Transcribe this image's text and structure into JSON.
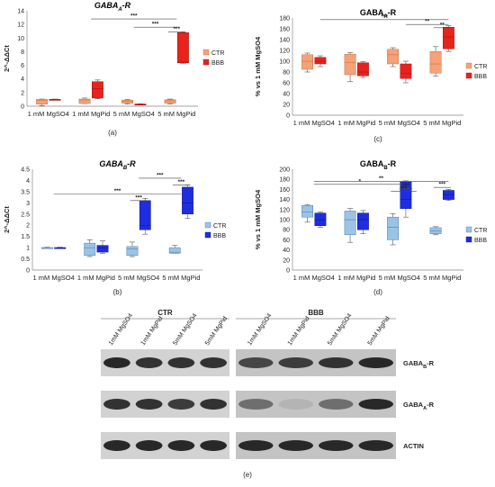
{
  "chart_data": [
    {
      "id": "a",
      "type": "box",
      "panel_label": "(a)",
      "title": "GABA",
      "title_sub": "A",
      "title_suffix": "-R",
      "ylabel": "2^-ΔΔCt",
      "ylim": [
        0,
        14
      ],
      "yticks": [
        0,
        2,
        4,
        6,
        8,
        10,
        12,
        14
      ],
      "categories": [
        "1 mM MgSO4",
        "1 mM MgPid",
        "5 mM MgSO4",
        "5 mM MgPid"
      ],
      "series": [
        {
          "name": "CTR",
          "color": "#f4a27a",
          "stroke": "#c7703f",
          "boxes": [
            {
              "min": 0.1,
              "q1": 0.3,
              "median": 0.9,
              "q3": 1.0,
              "max": 1.05
            },
            {
              "min": 0.4,
              "q1": 0.4,
              "median": 0.95,
              "q3": 1.05,
              "max": 1.2
            },
            {
              "min": 0.3,
              "q1": 0.45,
              "median": 0.75,
              "q3": 0.9,
              "max": 1.0
            },
            {
              "min": 0.3,
              "q1": 0.45,
              "median": 0.8,
              "q3": 0.95,
              "max": 1.05
            }
          ]
        },
        {
          "name": "BBB",
          "color": "#e8231e",
          "stroke": "#9c1410",
          "boxes": [
            {
              "min": 0.95,
              "q1": 1.0,
              "median": 1.0,
              "q3": 1.02,
              "max": 1.05
            },
            {
              "min": 1.1,
              "q1": 1.2,
              "median": 2.6,
              "q3": 3.6,
              "max": 3.85
            },
            {
              "min": 0.2,
              "q1": 0.25,
              "median": 0.3,
              "q3": 0.32,
              "max": 0.35
            },
            {
              "min": 6.3,
              "q1": 6.4,
              "median": 6.5,
              "q3": 10.8,
              "max": 10.9
            }
          ]
        }
      ],
      "significance": [
        {
          "from": 1,
          "to": 3,
          "level": 12.8,
          "label": "***"
        },
        {
          "from": 2,
          "to": 3,
          "level": 11.6,
          "label": "***"
        },
        {
          "from": 2.8,
          "to": 3.2,
          "level": 10.9,
          "label": "***"
        }
      ],
      "legend_position": "right"
    },
    {
      "id": "c",
      "type": "box",
      "panel_label": "(c)",
      "title": "GABA",
      "title_sub": "A",
      "title_suffix": "-R",
      "ylabel": "% vs 1 mM MgSO4",
      "ylim": [
        0,
        180
      ],
      "yticks": [
        0,
        20,
        40,
        60,
        80,
        100,
        120,
        140,
        160,
        180
      ],
      "categories": [
        "1 mM MgSO4",
        "1 mM MgPid",
        "5 mM MgSO4",
        "5 mM MgPid"
      ],
      "series": [
        {
          "name": "CTR",
          "color": "#f4a27a",
          "stroke": "#c7703f",
          "boxes": [
            {
              "min": 80,
              "q1": 85,
              "median": 100,
              "q3": 112,
              "max": 115
            },
            {
              "min": 62,
              "q1": 75,
              "median": 98,
              "q3": 113,
              "max": 116
            },
            {
              "min": 90,
              "q1": 95,
              "median": 112,
              "q3": 122,
              "max": 125
            },
            {
              "min": 72,
              "q1": 78,
              "median": 95,
              "q3": 118,
              "max": 127
            }
          ]
        },
        {
          "name": "BBB",
          "color": "#e8231e",
          "stroke": "#9c1410",
          "boxes": [
            {
              "min": 90,
              "q1": 95,
              "median": 100,
              "q3": 107,
              "max": 110
            },
            {
              "min": 70,
              "q1": 73,
              "median": 80,
              "q3": 97,
              "max": 99
            },
            {
              "min": 60,
              "q1": 68,
              "median": 78,
              "q3": 95,
              "max": 100
            },
            {
              "min": 118,
              "q1": 123,
              "median": 145,
              "q3": 163,
              "max": 166
            }
          ]
        }
      ],
      "significance": [
        {
          "from": 0.15,
          "to": 3.15,
          "level": 177,
          "label": "***"
        },
        {
          "from": 2.15,
          "to": 3.15,
          "level": 168,
          "label": "**"
        },
        {
          "from": 2.8,
          "to": 3.2,
          "level": 162,
          "label": "**"
        }
      ],
      "legend_position": "right"
    },
    {
      "id": "b",
      "type": "box",
      "panel_label": "(b)",
      "title": "GABA",
      "title_sub": "B",
      "title_suffix": "-R",
      "ylabel": "2^-ΔΔCt",
      "ylim": [
        0,
        4.5
      ],
      "yticks": [
        0,
        0.5,
        1,
        1.5,
        2,
        2.5,
        3,
        3.5,
        4,
        4.5
      ],
      "categories": [
        "1 mM MgSO4",
        "1 mM MgPid",
        "5 mM MgSO4",
        "5 mM MgPid"
      ],
      "series": [
        {
          "name": "CTR",
          "color": "#9cc3e6",
          "stroke": "#4f7ea8",
          "boxes": [
            {
              "min": 0.98,
              "q1": 1.0,
              "median": 1.0,
              "q3": 1.0,
              "max": 1.02
            },
            {
              "min": 0.6,
              "q1": 0.65,
              "median": 1.0,
              "q3": 1.2,
              "max": 1.35
            },
            {
              "min": 0.6,
              "q1": 0.65,
              "median": 0.95,
              "q3": 1.05,
              "max": 1.25
            },
            {
              "min": 0.75,
              "q1": 0.75,
              "median": 0.8,
              "q3": 1.0,
              "max": 1.1
            }
          ]
        },
        {
          "name": "BBB",
          "color": "#1f2de0",
          "stroke": "#0d1680",
          "boxes": [
            {
              "min": 0.98,
              "q1": 1.0,
              "median": 1.0,
              "q3": 1.0,
              "max": 1.02
            },
            {
              "min": 0.75,
              "q1": 0.8,
              "median": 1.0,
              "q3": 1.1,
              "max": 1.3
            },
            {
              "min": 1.6,
              "q1": 1.8,
              "median": 2.0,
              "q3": 3.1,
              "max": 3.2
            },
            {
              "min": 2.3,
              "q1": 2.5,
              "median": 3.0,
              "q3": 3.7,
              "max": 3.8
            }
          ]
        }
      ],
      "significance": [
        {
          "from": 0,
          "to": 3,
          "level": 3.4,
          "label": "***"
        },
        {
          "from": 2,
          "to": 3,
          "level": 4.1,
          "label": "***"
        },
        {
          "from": 1.8,
          "to": 2.2,
          "level": 3.1,
          "label": "***"
        },
        {
          "from": 2.8,
          "to": 3.2,
          "level": 3.8,
          "label": "***"
        }
      ],
      "legend_position": "right"
    },
    {
      "id": "d",
      "type": "box",
      "panel_label": "(d)",
      "title": "GABA",
      "title_sub": "B",
      "title_suffix": "-R",
      "ylabel": "% vs 1 mM MgSO4",
      "ylim": [
        0,
        200
      ],
      "yticks": [
        0,
        20,
        40,
        60,
        80,
        100,
        120,
        140,
        160,
        180,
        200
      ],
      "categories": [
        "1 mM MgSO4",
        "1 mM MgPid",
        "5 mM MgSO4",
        "5 mM MgPid"
      ],
      "series": [
        {
          "name": "CTR",
          "color": "#9cc3e6",
          "stroke": "#4f7ea8",
          "boxes": [
            {
              "min": 95,
              "q1": 105,
              "median": 115,
              "q3": 128,
              "max": 130
            },
            {
              "min": 55,
              "q1": 70,
              "median": 100,
              "q3": 117,
              "max": 122
            },
            {
              "min": 50,
              "q1": 60,
              "median": 85,
              "q3": 105,
              "max": 112
            },
            {
              "min": 70,
              "q1": 72,
              "median": 78,
              "q3": 84,
              "max": 86
            }
          ]
        },
        {
          "name": "BBB",
          "color": "#1f2de0",
          "stroke": "#0d1680",
          "boxes": [
            {
              "min": 85,
              "q1": 88,
              "median": 100,
              "q3": 113,
              "max": 115
            },
            {
              "min": 72,
              "q1": 80,
              "median": 100,
              "q3": 113,
              "max": 118
            },
            {
              "min": 105,
              "q1": 122,
              "median": 140,
              "q3": 175,
              "max": 177
            },
            {
              "min": 138,
              "q1": 140,
              "median": 150,
              "q3": 158,
              "max": 160
            }
          ]
        }
      ],
      "significance": [
        {
          "from": 0,
          "to": 2.15,
          "level": 170,
          "label": "*"
        },
        {
          "from": 0,
          "to": 3.15,
          "level": 176,
          "label": "**"
        },
        {
          "from": 2.0,
          "to": 2.3,
          "level": 162,
          "label": "***"
        },
        {
          "from": 1.8,
          "to": 2.4,
          "level": 156,
          "label": "***"
        },
        {
          "from": 2.8,
          "to": 3.2,
          "level": 164,
          "label": "***"
        }
      ],
      "legend_position": "right"
    }
  ],
  "blot": {
    "panel_label": "(e)",
    "groups": [
      {
        "name": "CTR",
        "lanes": [
          "1mM MgSO4",
          "1mM MgPid",
          "5mM MgSO4",
          "5mM MgPid"
        ]
      },
      {
        "name": "BBB",
        "lanes": [
          "1mM MgSO4",
          "1mM MgPid",
          "5mM MgSO4",
          "5mM MgPid"
        ]
      }
    ],
    "rows": [
      {
        "label": "GABAB-R",
        "label_main": "GABA",
        "label_sub": "B",
        "label_suffix": "-R",
        "ctr_intensity": [
          0.9,
          0.85,
          0.85,
          0.85
        ],
        "bbb_intensity": [
          0.75,
          0.8,
          0.85,
          0.9
        ]
      },
      {
        "label": "GABAA-R",
        "label_main": "GABA",
        "label_sub": "A",
        "label_suffix": "-R",
        "ctr_intensity": [
          0.85,
          0.85,
          0.8,
          0.85
        ],
        "bbb_intensity": [
          0.55,
          0.2,
          0.55,
          0.9
        ]
      },
      {
        "label": "ACTIN",
        "label_main": "ACTIN",
        "label_sub": "",
        "label_suffix": "",
        "ctr_intensity": [
          0.9,
          0.9,
          0.9,
          0.9
        ],
        "bbb_intensity": [
          0.9,
          0.9,
          0.9,
          0.9
        ]
      }
    ]
  }
}
